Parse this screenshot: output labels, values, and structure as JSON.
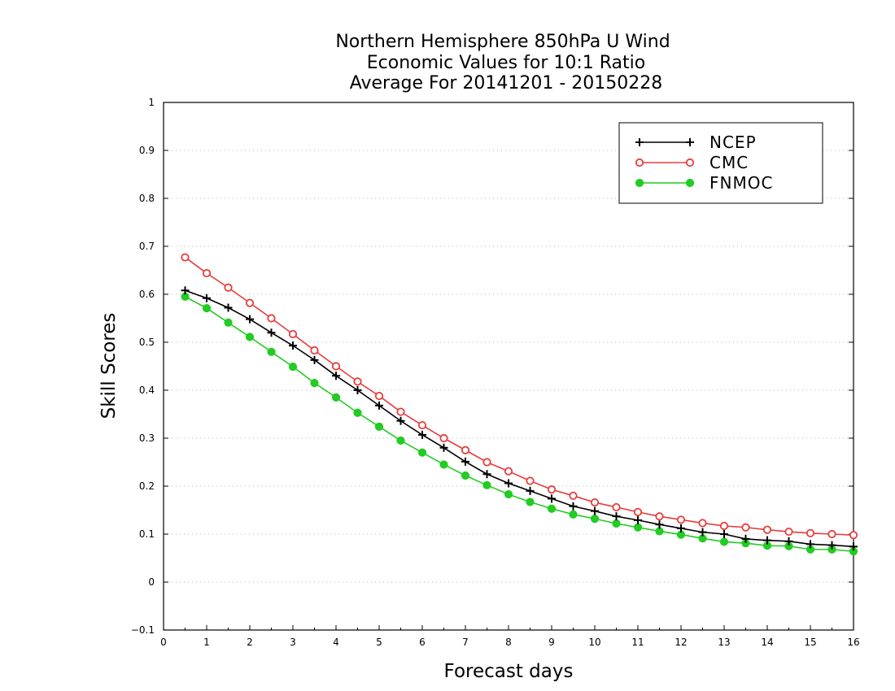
{
  "chart_data": {
    "type": "line",
    "title": [
      "Northern Hemisphere 850hPa U Wind",
      "Economic Values for 10:1 Ratio",
      "Average For 20141201 - 20150228"
    ],
    "xlabel": "Forecast days",
    "ylabel": "Skill Scores",
    "xlim": [
      0,
      16
    ],
    "ylim": [
      -0.1,
      1
    ],
    "xticks": [
      "0",
      "1",
      "2",
      "3",
      "4",
      "5",
      "6",
      "7",
      "8",
      "9",
      "10",
      "11",
      "12",
      "13",
      "14",
      "15",
      "16"
    ],
    "yticks": [
      "−0.1",
      "0",
      "0.1",
      "0.2",
      "0.3",
      "0.4",
      "0.5",
      "0.6",
      "0.7",
      "0.8",
      "0.9",
      "1"
    ],
    "grid": true,
    "legend_position": "top-right",
    "x": [
      0.5,
      1,
      1.5,
      2,
      2.5,
      3,
      3.5,
      4,
      4.5,
      5,
      5.5,
      6,
      6.5,
      7,
      7.5,
      8,
      8.5,
      9,
      9.5,
      10,
      10.5,
      11,
      11.5,
      12,
      12.5,
      13,
      13.5,
      14,
      14.5,
      15,
      15.5,
      16
    ],
    "series": [
      {
        "name": "NCEP",
        "color": "#000000",
        "marker": "plus",
        "values": [
          0.608,
          0.592,
          0.572,
          0.548,
          0.52,
          0.493,
          0.463,
          0.43,
          0.4,
          0.368,
          0.336,
          0.307,
          0.28,
          0.251,
          0.225,
          0.206,
          0.19,
          0.174,
          0.158,
          0.148,
          0.137,
          0.129,
          0.12,
          0.112,
          0.104,
          0.1,
          0.09,
          0.087,
          0.085,
          0.079,
          0.077,
          0.074
        ]
      },
      {
        "name": "CMC",
        "color": "#e83c3c",
        "marker": "open-circle",
        "values": [
          0.677,
          0.644,
          0.614,
          0.582,
          0.55,
          0.517,
          0.483,
          0.45,
          0.418,
          0.388,
          0.355,
          0.327,
          0.3,
          0.275,
          0.25,
          0.231,
          0.211,
          0.193,
          0.18,
          0.166,
          0.156,
          0.146,
          0.137,
          0.13,
          0.123,
          0.117,
          0.114,
          0.109,
          0.105,
          0.102,
          0.1,
          0.098
        ]
      },
      {
        "name": "FNMOC",
        "color": "#22cc22",
        "marker": "filled-circle",
        "values": [
          0.595,
          0.571,
          0.541,
          0.511,
          0.48,
          0.449,
          0.415,
          0.385,
          0.353,
          0.324,
          0.295,
          0.27,
          0.245,
          0.222,
          0.202,
          0.183,
          0.167,
          0.153,
          0.141,
          0.132,
          0.122,
          0.114,
          0.106,
          0.099,
          0.091,
          0.084,
          0.081,
          0.076,
          0.075,
          0.068,
          0.068,
          0.064
        ]
      }
    ]
  }
}
